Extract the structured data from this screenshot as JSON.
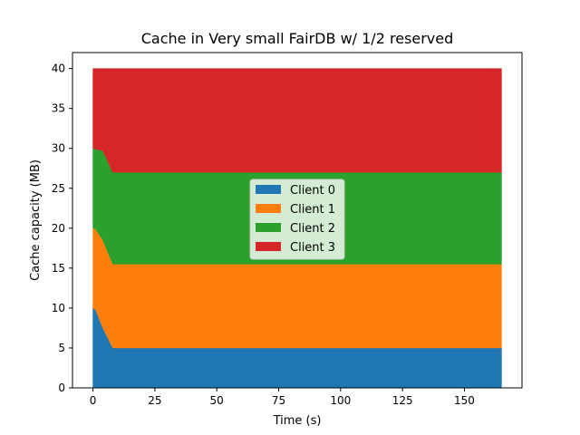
{
  "chart_data": {
    "type": "area",
    "stacked": true,
    "title": "Cache in Very small FairDB w/ 1/2 reserved",
    "xlabel": "Time (s)",
    "ylabel": "Cache capacity (MB)",
    "xlim": [
      -8.25,
      173.25
    ],
    "ylim": [
      0,
      42
    ],
    "xticks": [
      0,
      25,
      50,
      75,
      100,
      125,
      150
    ],
    "yticks": [
      0,
      5,
      10,
      15,
      20,
      25,
      30,
      35,
      40
    ],
    "x": [
      0,
      1,
      4,
      8,
      10,
      165
    ],
    "series": [
      {
        "name": "Client 0",
        "color": "#1f77b4",
        "values": [
          10,
          9.8,
          7.5,
          5,
          5,
          5
        ]
      },
      {
        "name": "Client 1",
        "color": "#ff7f0e",
        "values": [
          10,
          10.1,
          11,
          10.5,
          10.5,
          10.5
        ]
      },
      {
        "name": "Client 2",
        "color": "#2ca02c",
        "values": [
          10,
          10,
          11.2,
          11.5,
          11.5,
          11.5
        ]
      },
      {
        "name": "Client 3",
        "color": "#d62728",
        "values": [
          10,
          10.1,
          10.3,
          13,
          13,
          13
        ]
      }
    ],
    "legend": "center-right",
    "grid": false
  }
}
